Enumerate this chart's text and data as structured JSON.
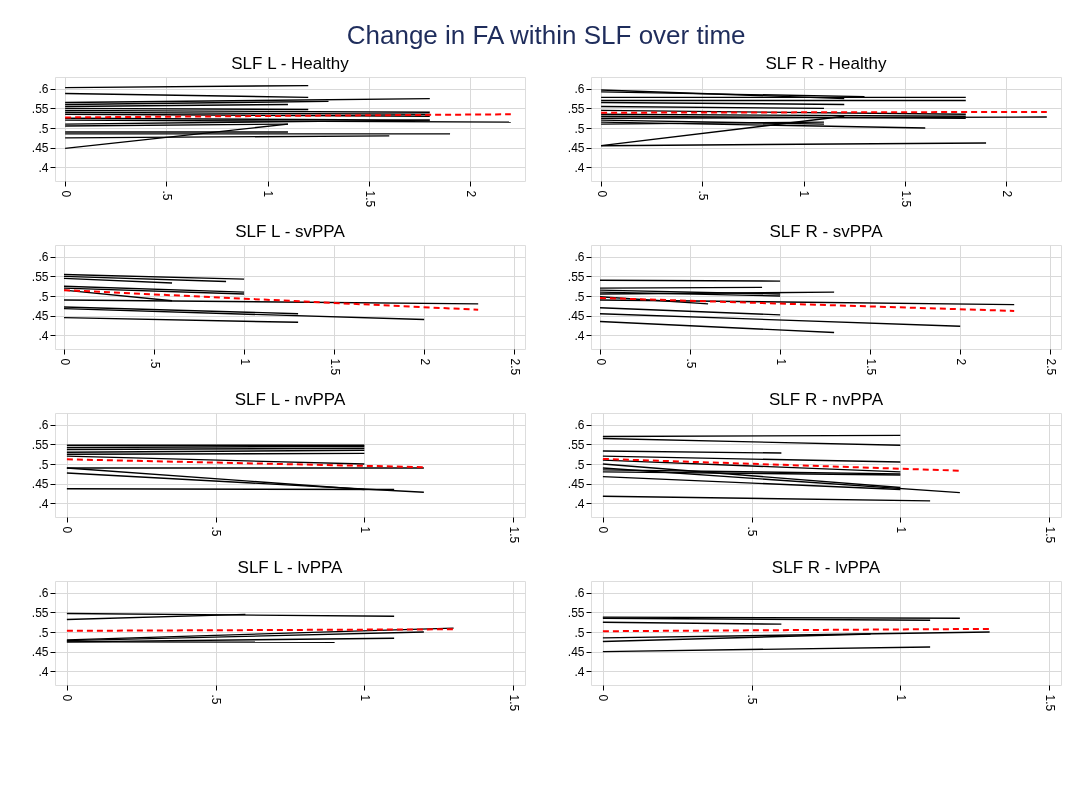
{
  "chart_data": [
    {
      "type": "line",
      "title": "SLF L - Healthy",
      "annotations": [
        "Change in FA within SLF over time"
      ],
      "grid": true,
      "xlim": [
        -0.05,
        2.27
      ],
      "ylim": [
        0.365,
        0.63
      ],
      "xticks": [
        0,
        {
          "value": 0.5,
          "label": ".5"
        },
        1,
        {
          "value": 1.5,
          "label": "1.5"
        },
        2
      ],
      "yticks": [
        {
          "value": 0.4,
          "label": ".4"
        },
        {
          "value": 0.45,
          "label": ".45"
        },
        {
          "value": 0.5,
          "label": ".5"
        },
        {
          "value": 0.55,
          "label": ".55"
        },
        {
          "value": 0.6,
          "label": ".6"
        }
      ],
      "series": [
        {
          "color": "#000000",
          "x": [
            0,
            1.2
          ],
          "values": [
            0.603,
            0.608
          ]
        },
        {
          "color": "#000000",
          "x": [
            0,
            1.2
          ],
          "values": [
            0.588,
            0.578
          ]
        },
        {
          "color": "#000000",
          "x": [
            0,
            1.8
          ],
          "values": [
            0.565,
            0.575
          ]
        },
        {
          "color": "#000000",
          "x": [
            0,
            1.3
          ],
          "values": [
            0.56,
            0.568
          ]
        },
        {
          "color": "#000000",
          "x": [
            0,
            1.1
          ],
          "values": [
            0.555,
            0.56
          ]
        },
        {
          "color": "#000000",
          "x": [
            0,
            1.2
          ],
          "values": [
            0.55,
            0.547
          ]
        },
        {
          "color": "#000000",
          "x": [
            0,
            1.8
          ],
          "values": [
            0.545,
            0.54
          ]
        },
        {
          "color": "#000000",
          "x": [
            0,
            1.8
          ],
          "values": [
            0.54,
            0.535
          ]
        },
        {
          "color": "#000000",
          "x": [
            0,
            1.8
          ],
          "values": [
            0.535,
            0.53
          ]
        },
        {
          "color": "#000000",
          "x": [
            0,
            1.8
          ],
          "values": [
            0.525,
            0.52
          ]
        },
        {
          "color": "#000000",
          "x": [
            0,
            2.2
          ],
          "values": [
            0.52,
            0.515
          ]
        },
        {
          "color": "#000000",
          "x": [
            0,
            1.8
          ],
          "values": [
            0.51,
            0.52
          ]
        },
        {
          "color": "#000000",
          "x": [
            0,
            1.1
          ],
          "values": [
            0.505,
            0.51
          ]
        },
        {
          "color": "#000000",
          "x": [
            0,
            1.1
          ],
          "values": [
            0.49,
            0.49
          ]
        },
        {
          "color": "#000000",
          "x": [
            0,
            1.9
          ],
          "values": [
            0.485,
            0.485
          ]
        },
        {
          "color": "#000000",
          "x": [
            0,
            1.6
          ],
          "values": [
            0.475,
            0.48
          ]
        },
        {
          "color": "#000000",
          "x": [
            0,
            1.1
          ],
          "values": [
            0.448,
            0.51
          ]
        },
        {
          "color": "#ff0000",
          "line_style": "dashed",
          "x": [
            0,
            2.2
          ],
          "values": [
            0.527,
            0.535
          ]
        }
      ]
    },
    {
      "type": "line",
      "title": "SLF R - Healthy",
      "grid": true,
      "xlim": [
        -0.05,
        2.27
      ],
      "ylim": [
        0.365,
        0.63
      ],
      "xticks": [
        0,
        {
          "value": 0.5,
          "label": ".5"
        },
        1,
        {
          "value": 1.5,
          "label": "1.5"
        },
        2
      ],
      "yticks": [
        {
          "value": 0.4,
          "label": ".4"
        },
        {
          "value": 0.45,
          "label": ".45"
        },
        {
          "value": 0.5,
          "label": ".5"
        },
        {
          "value": 0.55,
          "label": ".55"
        },
        {
          "value": 0.6,
          "label": ".6"
        }
      ],
      "series": [
        {
          "color": "#000000",
          "x": [
            0,
            1.2
          ],
          "values": [
            0.597,
            0.575
          ]
        },
        {
          "color": "#000000",
          "x": [
            0,
            1.3
          ],
          "values": [
            0.592,
            0.58
          ]
        },
        {
          "color": "#000000",
          "x": [
            0,
            1.8
          ],
          "values": [
            0.578,
            0.578
          ]
        },
        {
          "color": "#000000",
          "x": [
            0,
            1.8
          ],
          "values": [
            0.57,
            0.57
          ]
        },
        {
          "color": "#000000",
          "x": [
            0,
            1.2
          ],
          "values": [
            0.565,
            0.56
          ]
        },
        {
          "color": "#000000",
          "x": [
            0,
            1.1
          ],
          "values": [
            0.555,
            0.55
          ]
        },
        {
          "color": "#000000",
          "x": [
            0,
            1.8
          ],
          "values": [
            0.545,
            0.535
          ]
        },
        {
          "color": "#000000",
          "x": [
            0,
            1.8
          ],
          "values": [
            0.535,
            0.53
          ]
        },
        {
          "color": "#000000",
          "x": [
            0,
            1.8
          ],
          "values": [
            0.53,
            0.525
          ]
        },
        {
          "color": "#000000",
          "x": [
            0,
            2.2
          ],
          "values": [
            0.525,
            0.528
          ]
        },
        {
          "color": "#000000",
          "x": [
            0,
            1.1
          ],
          "values": [
            0.52,
            0.51
          ]
        },
        {
          "color": "#000000",
          "x": [
            0,
            1.6
          ],
          "values": [
            0.515,
            0.5
          ]
        },
        {
          "color": "#000000",
          "x": [
            0,
            1.1
          ],
          "values": [
            0.51,
            0.515
          ]
        },
        {
          "color": "#000000",
          "x": [
            0,
            1.2
          ],
          "values": [
            0.455,
            0.53
          ]
        },
        {
          "color": "#000000",
          "x": [
            0,
            1.9
          ],
          "values": [
            0.455,
            0.462
          ]
        },
        {
          "color": "#ff0000",
          "line_style": "dashed",
          "x": [
            0,
            2.2
          ],
          "values": [
            0.539,
            0.541
          ]
        }
      ]
    },
    {
      "type": "line",
      "title": "SLF L - svPPA",
      "grid": true,
      "xlim": [
        -0.05,
        2.56
      ],
      "ylim": [
        0.365,
        0.63
      ],
      "xticks": [
        0,
        {
          "value": 0.5,
          "label": ".5"
        },
        1,
        {
          "value": 1.5,
          "label": "1.5"
        },
        2,
        {
          "value": 2.5,
          "label": "2.5"
        }
      ],
      "yticks": [
        {
          "value": 0.4,
          "label": ".4"
        },
        {
          "value": 0.45,
          "label": ".45"
        },
        {
          "value": 0.5,
          "label": ".5"
        },
        {
          "value": 0.55,
          "label": ".55"
        },
        {
          "value": 0.6,
          "label": ".6"
        }
      ],
      "series": [
        {
          "color": "#000000",
          "x": [
            0,
            1
          ],
          "values": [
            0.555,
            0.543
          ]
        },
        {
          "color": "#000000",
          "x": [
            0,
            0.9
          ],
          "values": [
            0.55,
            0.537
          ]
        },
        {
          "color": "#000000",
          "x": [
            0,
            0.6
          ],
          "values": [
            0.545,
            0.533
          ]
        },
        {
          "color": "#000000",
          "x": [
            0,
            1
          ],
          "values": [
            0.525,
            0.51
          ]
        },
        {
          "color": "#000000",
          "x": [
            0,
            1
          ],
          "values": [
            0.52,
            0.505
          ]
        },
        {
          "color": "#000000",
          "x": [
            0,
            0.6
          ],
          "values": [
            0.515,
            0.488
          ]
        },
        {
          "color": "#000000",
          "x": [
            0,
            2.3
          ],
          "values": [
            0.49,
            0.48
          ]
        },
        {
          "color": "#000000",
          "x": [
            0,
            1.3
          ],
          "values": [
            0.472,
            0.455
          ]
        },
        {
          "color": "#000000",
          "x": [
            0,
            2
          ],
          "values": [
            0.468,
            0.44
          ]
        },
        {
          "color": "#000000",
          "x": [
            0,
            1.3
          ],
          "values": [
            0.445,
            0.433
          ]
        },
        {
          "color": "#ff0000",
          "line_style": "dashed",
          "x": [
            0,
            2.3
          ],
          "values": [
            0.515,
            0.465
          ]
        }
      ]
    },
    {
      "type": "line",
      "title": "SLF R - svPPA",
      "grid": true,
      "xlim": [
        -0.05,
        2.56
      ],
      "ylim": [
        0.365,
        0.63
      ],
      "xticks": [
        0,
        {
          "value": 0.5,
          "label": ".5"
        },
        1,
        {
          "value": 1.5,
          "label": "1.5"
        },
        2,
        {
          "value": 2.5,
          "label": "2.5"
        }
      ],
      "yticks": [
        {
          "value": 0.4,
          "label": ".4"
        },
        {
          "value": 0.45,
          "label": ".45"
        },
        {
          "value": 0.5,
          "label": ".5"
        },
        {
          "value": 0.55,
          "label": ".55"
        },
        {
          "value": 0.6,
          "label": ".6"
        }
      ],
      "series": [
        {
          "color": "#000000",
          "x": [
            0,
            1
          ],
          "values": [
            0.54,
            0.538
          ]
        },
        {
          "color": "#000000",
          "x": [
            0,
            0.9
          ],
          "values": [
            0.52,
            0.522
          ]
        },
        {
          "color": "#000000",
          "x": [
            0,
            1
          ],
          "values": [
            0.515,
            0.505
          ]
        },
        {
          "color": "#000000",
          "x": [
            0,
            1
          ],
          "values": [
            0.51,
            0.5
          ]
        },
        {
          "color": "#000000",
          "x": [
            0,
            1.3
          ],
          "values": [
            0.505,
            0.51
          ]
        },
        {
          "color": "#000000",
          "x": [
            0,
            0.6
          ],
          "values": [
            0.498,
            0.48
          ]
        },
        {
          "color": "#000000",
          "x": [
            0,
            2.3
          ],
          "values": [
            0.49,
            0.478
          ]
        },
        {
          "color": "#000000",
          "x": [
            0,
            1
          ],
          "values": [
            0.47,
            0.452
          ]
        },
        {
          "color": "#000000",
          "x": [
            0,
            2
          ],
          "values": [
            0.455,
            0.423
          ]
        },
        {
          "color": "#000000",
          "x": [
            0,
            1.3
          ],
          "values": [
            0.435,
            0.407
          ]
        },
        {
          "color": "#ff0000",
          "line_style": "dashed",
          "x": [
            0,
            2.3
          ],
          "values": [
            0.495,
            0.462
          ]
        }
      ]
    },
    {
      "type": "line",
      "title": "SLF L - nvPPA",
      "grid": true,
      "xlim": [
        -0.04,
        1.54
      ],
      "ylim": [
        0.365,
        0.63
      ],
      "xticks": [
        0,
        {
          "value": 0.5,
          "label": ".5"
        },
        1,
        {
          "value": 1.5,
          "label": "1.5"
        }
      ],
      "yticks": [
        {
          "value": 0.4,
          "label": ".4"
        },
        {
          "value": 0.45,
          "label": ".45"
        },
        {
          "value": 0.5,
          "label": ".5"
        },
        {
          "value": 0.55,
          "label": ".55"
        },
        {
          "value": 0.6,
          "label": ".6"
        }
      ],
      "series": [
        {
          "color": "#000000",
          "x": [
            0,
            1
          ],
          "values": [
            0.548,
            0.548
          ]
        },
        {
          "color": "#000000",
          "x": [
            0,
            1
          ],
          "values": [
            0.542,
            0.545
          ]
        },
        {
          "color": "#000000",
          "x": [
            0,
            1
          ],
          "values": [
            0.537,
            0.54
          ]
        },
        {
          "color": "#000000",
          "x": [
            0,
            1
          ],
          "values": [
            0.53,
            0.535
          ]
        },
        {
          "color": "#000000",
          "x": [
            0,
            1
          ],
          "values": [
            0.525,
            0.527
          ]
        },
        {
          "color": "#000000",
          "x": [
            0,
            1
          ],
          "values": [
            0.52,
            0.5
          ]
        },
        {
          "color": "#000000",
          "x": [
            0,
            1.2
          ],
          "values": [
            0.49,
            0.49
          ]
        },
        {
          "color": "#000000",
          "x": [
            0,
            1
          ],
          "values": [
            0.49,
            0.435
          ]
        },
        {
          "color": "#000000",
          "x": [
            0,
            1.2
          ],
          "values": [
            0.477,
            0.428
          ]
        },
        {
          "color": "#000000",
          "x": [
            0,
            1.1
          ],
          "values": [
            0.437,
            0.435
          ]
        },
        {
          "color": "#ff0000",
          "line_style": "dashed",
          "x": [
            0,
            1.2
          ],
          "values": [
            0.512,
            0.492
          ]
        }
      ]
    },
    {
      "type": "line",
      "title": "SLF R - nvPPA",
      "grid": true,
      "xlim": [
        -0.04,
        1.54
      ],
      "ylim": [
        0.365,
        0.63
      ],
      "xticks": [
        0,
        {
          "value": 0.5,
          "label": ".5"
        },
        1,
        {
          "value": 1.5,
          "label": "1.5"
        }
      ],
      "yticks": [
        {
          "value": 0.4,
          "label": ".4"
        },
        {
          "value": 0.45,
          "label": ".45"
        },
        {
          "value": 0.5,
          "label": ".5"
        },
        {
          "value": 0.55,
          "label": ".55"
        },
        {
          "value": 0.6,
          "label": ".6"
        }
      ],
      "series": [
        {
          "color": "#000000",
          "x": [
            0,
            1
          ],
          "values": [
            0.57,
            0.573
          ]
        },
        {
          "color": "#000000",
          "x": [
            0,
            1
          ],
          "values": [
            0.565,
            0.548
          ]
        },
        {
          "color": "#000000",
          "x": [
            0,
            0.6
          ],
          "values": [
            0.533,
            0.528
          ]
        },
        {
          "color": "#000000",
          "x": [
            0,
            1
          ],
          "values": [
            0.52,
            0.505
          ]
        },
        {
          "color": "#000000",
          "x": [
            0,
            1
          ],
          "values": [
            0.51,
            0.48
          ]
        },
        {
          "color": "#000000",
          "x": [
            0,
            1
          ],
          "values": [
            0.5,
            0.44
          ]
        },
        {
          "color": "#000000",
          "x": [
            0,
            1
          ],
          "values": [
            0.485,
            0.475
          ]
        },
        {
          "color": "#000000",
          "x": [
            0,
            1
          ],
          "values": [
            0.48,
            0.472
          ]
        },
        {
          "color": "#000000",
          "x": [
            0,
            1
          ],
          "values": [
            0.468,
            0.435
          ]
        },
        {
          "color": "#000000",
          "x": [
            0,
            1.2
          ],
          "values": [
            0.49,
            0.427
          ]
        },
        {
          "color": "#000000",
          "x": [
            0,
            1.1
          ],
          "values": [
            0.418,
            0.406
          ]
        },
        {
          "color": "#ff0000",
          "line_style": "dashed",
          "x": [
            0,
            1.2
          ],
          "values": [
            0.513,
            0.483
          ]
        }
      ]
    },
    {
      "type": "line",
      "title": "SLF L - lvPPA",
      "grid": true,
      "xlim": [
        -0.04,
        1.54
      ],
      "ylim": [
        0.365,
        0.63
      ],
      "xticks": [
        0,
        {
          "value": 0.5,
          "label": ".5"
        },
        1,
        {
          "value": 1.5,
          "label": "1.5"
        }
      ],
      "yticks": [
        {
          "value": 0.4,
          "label": ".4"
        },
        {
          "value": 0.45,
          "label": ".45"
        },
        {
          "value": 0.5,
          "label": ".5"
        },
        {
          "value": 0.55,
          "label": ".55"
        },
        {
          "value": 0.6,
          "label": ".6"
        }
      ],
      "series": [
        {
          "color": "#000000",
          "x": [
            0,
            1.1
          ],
          "values": [
            0.547,
            0.54
          ]
        },
        {
          "color": "#000000",
          "x": [
            0,
            0.6
          ],
          "values": [
            0.532,
            0.545
          ]
        },
        {
          "color": "#000000",
          "x": [
            0,
            1.3
          ],
          "values": [
            0.48,
            0.51
          ]
        },
        {
          "color": "#000000",
          "x": [
            0,
            1.2
          ],
          "values": [
            0.478,
            0.5
          ]
        },
        {
          "color": "#000000",
          "x": [
            0,
            1.1
          ],
          "values": [
            0.475,
            0.484
          ]
        },
        {
          "color": "#000000",
          "x": [
            0,
            0.9
          ],
          "values": [
            0.475,
            0.474
          ]
        },
        {
          "color": "#ff0000",
          "line_style": "dashed",
          "x": [
            0,
            1.3
          ],
          "values": [
            0.503,
            0.507
          ]
        }
      ]
    },
    {
      "type": "line",
      "title": "SLF R - lvPPA",
      "grid": true,
      "xlim": [
        -0.04,
        1.54
      ],
      "ylim": [
        0.365,
        0.63
      ],
      "xticks": [
        0,
        {
          "value": 0.5,
          "label": ".5"
        },
        1,
        {
          "value": 1.5,
          "label": "1.5"
        }
      ],
      "yticks": [
        {
          "value": 0.4,
          "label": ".4"
        },
        {
          "value": 0.45,
          "label": ".45"
        },
        {
          "value": 0.5,
          "label": ".5"
        },
        {
          "value": 0.55,
          "label": ".55"
        },
        {
          "value": 0.6,
          "label": ".6"
        }
      ],
      "series": [
        {
          "color": "#000000",
          "x": [
            0,
            1.2
          ],
          "values": [
            0.538,
            0.535
          ]
        },
        {
          "color": "#000000",
          "x": [
            0,
            1.1
          ],
          "values": [
            0.535,
            0.53
          ]
        },
        {
          "color": "#000000",
          "x": [
            0,
            0.6
          ],
          "values": [
            0.525,
            0.52
          ]
        },
        {
          "color": "#000000",
          "x": [
            0,
            1.3
          ],
          "values": [
            0.485,
            0.5
          ]
        },
        {
          "color": "#000000",
          "x": [
            0,
            0.9
          ],
          "values": [
            0.476,
            0.495
          ]
        },
        {
          "color": "#000000",
          "x": [
            0,
            1.1
          ],
          "values": [
            0.45,
            0.462
          ]
        },
        {
          "color": "#ff0000",
          "line_style": "dashed",
          "x": [
            0,
            1.3
          ],
          "values": [
            0.502,
            0.508
          ]
        }
      ]
    }
  ]
}
